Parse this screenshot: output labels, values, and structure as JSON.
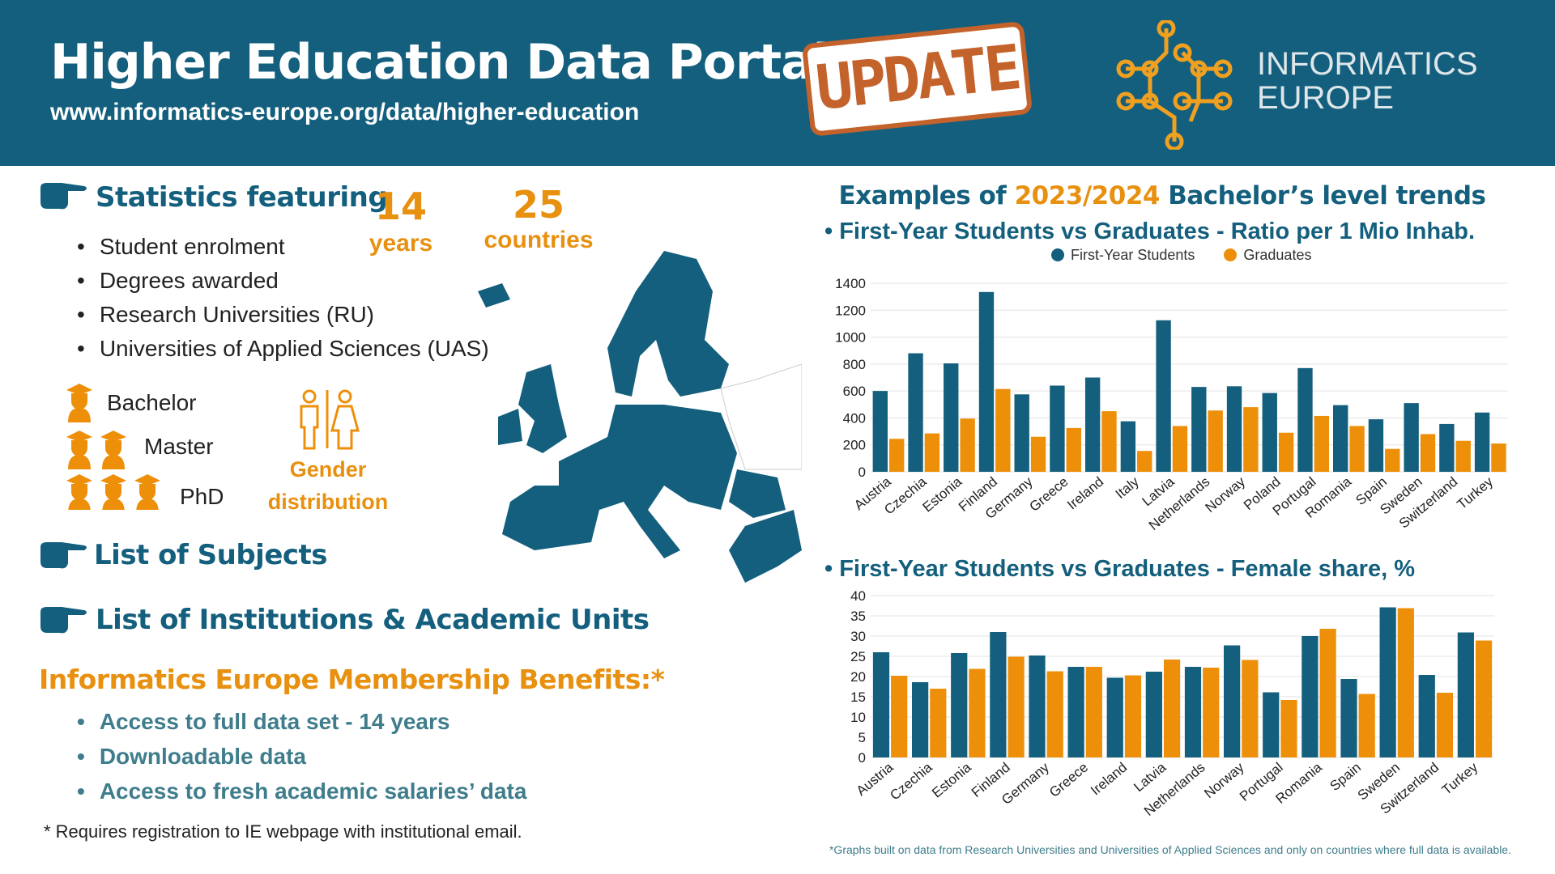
{
  "header": {
    "title": "Higher Education Data Portal",
    "url": "www.informatics-europe.org/data/higher-education",
    "stamp": "UPDATE",
    "logo_line1": "INFORMATICS",
    "logo_line2": "EUROPE"
  },
  "left": {
    "stats_heading": "Statistics featuring",
    "years_num": "14",
    "years_label": "years",
    "countries_num": "25",
    "countries_label": "countries",
    "bullets": [
      "Student enrolment",
      "Degrees awarded",
      "Research Universities (RU)",
      "Universities of Applied Sciences (UAS)"
    ],
    "degrees": [
      "Bachelor",
      "Master",
      "PhD"
    ],
    "gender_line1": "Gender",
    "gender_line2": "distribution",
    "subjects": "List of Subjects",
    "institutions": "List of Institutions & Academic Units",
    "membership_heading": "Informatics Europe Membership Benefits:*",
    "benefits": [
      "Access to full data set - 14 years",
      "Downloadable data",
      "Access to fresh academic salaries’ data"
    ],
    "footnote": "* Requires registration to IE webpage with institutional email."
  },
  "right": {
    "heading_pre": "Examples of ",
    "heading_year": "2023/2024",
    "heading_post": " Bachelor’s level trends",
    "footer": "*Graphs  built on data from  Research Universities and Universities of Applied Sciences and only on countries where full data is available."
  },
  "colors": {
    "teal": "#135f7d",
    "orange": "#ee8f0a"
  },
  "chart_data": [
    {
      "type": "bar",
      "title": "First-Year Students vs Graduates - Ratio per 1 Mio Inhab.",
      "legend": "top",
      "ylim": [
        0,
        1400
      ],
      "yticks": [
        0,
        200,
        400,
        600,
        800,
        1000,
        1200,
        1400
      ],
      "grid": true,
      "categories": [
        "Austria",
        "Czechia",
        "Estonia",
        "Finland",
        "Germany",
        "Greece",
        "Ireland",
        "Italy",
        "Latvia",
        "Netherlands",
        "Norway",
        "Poland",
        "Portugal",
        "Romania",
        "Spain",
        "Sweden",
        "Switzerland",
        "Turkey"
      ],
      "series": [
        {
          "name": "First-Year Students",
          "color": "#135f7d",
          "values": [
            600,
            880,
            805,
            1335,
            575,
            640,
            700,
            375,
            1125,
            630,
            635,
            585,
            770,
            495,
            390,
            510,
            355,
            440
          ]
        },
        {
          "name": "Graduates",
          "color": "#ee8f0a",
          "values": [
            245,
            285,
            395,
            615,
            260,
            325,
            450,
            155,
            340,
            455,
            480,
            290,
            415,
            340,
            170,
            280,
            230,
            210
          ]
        }
      ]
    },
    {
      "type": "bar",
      "title": "First-Year Students vs Graduates - Female share, %",
      "ylim": [
        0,
        40
      ],
      "yticks": [
        0,
        5,
        10,
        15,
        20,
        25,
        30,
        35,
        40
      ],
      "grid": true,
      "categories": [
        "Austria",
        "Czechia",
        "Estonia",
        "Finland",
        "Germany",
        "Greece",
        "Ireland",
        "Latvia",
        "Netherlands",
        "Norway",
        "Portugal",
        "Romania",
        "Spain",
        "Sweden",
        "Switzerland",
        "Turkey"
      ],
      "series": [
        {
          "color": "#135f7d",
          "values": [
            26,
            18.6,
            25.8,
            31,
            25.2,
            22.4,
            19.7,
            21.2,
            22.4,
            27.7,
            16.1,
            30,
            19.4,
            37.1,
            20.4,
            30.9
          ]
        },
        {
          "color": "#ee8f0a",
          "values": [
            20.2,
            17,
            21.9,
            24.9,
            21.3,
            22.4,
            20.3,
            24.2,
            22.2,
            24.1,
            14.2,
            31.8,
            15.7,
            36.9,
            16,
            28.9
          ]
        }
      ]
    }
  ]
}
